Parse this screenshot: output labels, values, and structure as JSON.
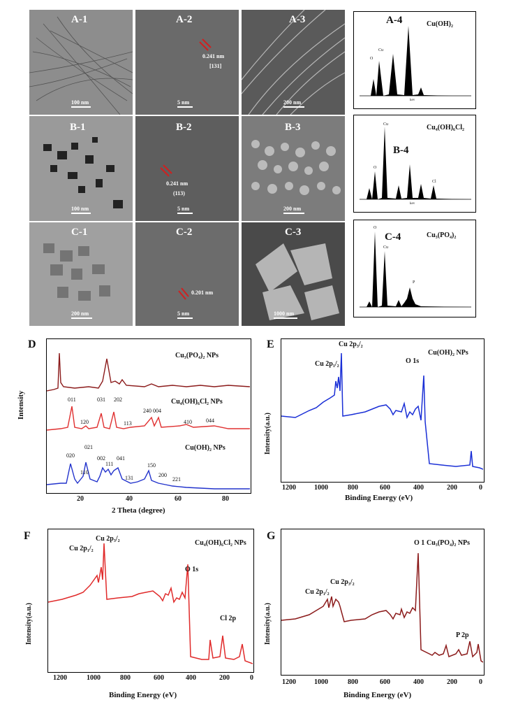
{
  "micrographs": [
    {
      "id": "A-1",
      "scale": "100 nm"
    },
    {
      "id": "A-2",
      "spacing": "0.241 nm",
      "plane": "[131]",
      "scale": "5 nm"
    },
    {
      "id": "A-3",
      "scale": "200 nm"
    },
    {
      "id": "B-1",
      "scale": "100 nm"
    },
    {
      "id": "B-2",
      "spacing": "0.241 nm",
      "plane": "(113)",
      "scale": "5 nm"
    },
    {
      "id": "B-3",
      "scale": "200 nm"
    },
    {
      "id": "C-1",
      "scale": "200 nm"
    },
    {
      "id": "C-2",
      "spacing": "0.201 nm",
      "scale": "5 nm"
    },
    {
      "id": "C-3",
      "scale": "1000 nm"
    }
  ],
  "eds": [
    {
      "id": "A-4",
      "compound": "Cu(OH)₂",
      "peaks": [
        "O",
        "Cu"
      ],
      "xlabel": "kev"
    },
    {
      "id": "B-4",
      "compound": "Cu₄(OH)₆Cl₂",
      "peaks": [
        "Cu",
        "O",
        "Cl"
      ],
      "xlabel": "kev"
    },
    {
      "id": "C-4",
      "compound": "Cu₃(PO₄)₂",
      "peaks": [
        "O",
        "Cu",
        "P"
      ],
      "xlabel": "kev"
    }
  ],
  "xrd": {
    "label": "D",
    "series": [
      {
        "name": "Cu₃(PO₄)₂ NPs",
        "color": "#8B1A1A"
      },
      {
        "name": "Cu₄(OH)₆Cl₂ NPs",
        "color": "#E03030"
      },
      {
        "name": "Cu(OH)₂ NPs",
        "color": "#2233CC"
      }
    ],
    "peaks_cl": [
      "011",
      "120",
      "031",
      "202",
      "113",
      "240",
      "004",
      "410",
      "044"
    ],
    "peaks_oh": [
      "020",
      "021",
      "110",
      "002",
      "111",
      "041",
      "131",
      "150",
      "200",
      "221"
    ],
    "xlabel": "2 Theta (degree)",
    "ylabel": "Intensity",
    "xticks": [
      "20",
      "40",
      "60",
      "80"
    ]
  },
  "xps": [
    {
      "label": "E",
      "title": "Cu(OH)₂ NPs",
      "color": "#1a2fd6",
      "annotations": [
        "Cu 2p₁/₂",
        "Cu 2p₃/₂",
        "O 1s"
      ]
    },
    {
      "label": "F",
      "title": "Cu₄(OH)₆Cl₂ NPs",
      "color": "#e02a2a",
      "annotations": [
        "Cu 2p₁/₂",
        "Cu 2p₃/₂",
        "O 1s",
        "Cl 2p"
      ]
    },
    {
      "label": "G",
      "title": "Cu₃(PO₄)₂ NPs",
      "color": "#8B1A1A",
      "annotations": [
        "Cu 2p₁/₂",
        "Cu 2p₃/₂",
        "O 1",
        "P 2p"
      ]
    }
  ],
  "xps_axis": {
    "xlabel": "Binding Energy (eV)",
    "ylabel": "Intensity(a.u.)",
    "xticks": [
      "1200",
      "1000",
      "800",
      "600",
      "400",
      "200",
      "0"
    ]
  },
  "colors": {
    "micrograph_bg": "#7a7a7a",
    "eds_fill": "#000000"
  }
}
